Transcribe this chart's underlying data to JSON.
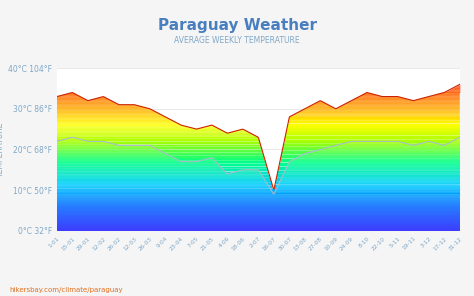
{
  "title": "Paraguay Weather",
  "subtitle": "AVERAGE WEEKLY TEMPERATURE",
  "ylabel": "TEMPERATURE",
  "watermark": "hikersbay.com/climate/paraguay",
  "yticks_labels": [
    "0°C 32°F",
    "10°C 50°F",
    "20°C 68°F",
    "30°C 86°F",
    "40°C 104°F"
  ],
  "yticks_vals": [
    0,
    10,
    20,
    30,
    40
  ],
  "ylim": [
    0,
    40
  ],
  "xtick_labels": [
    "1-01",
    "15-01",
    "29-01",
    "12-02",
    "26-02",
    "12-03",
    "26-03",
    "9-04",
    "23-04",
    "7-05",
    "21-05",
    "4-06",
    "18-06",
    "2-07",
    "16-07",
    "30-07",
    "13-08",
    "27-08",
    "10-09",
    "24-09",
    "8-10",
    "22-10",
    "5-11",
    "19-11",
    "3-12",
    "17-12",
    "31-12"
  ],
  "day_temps": [
    33,
    34,
    32,
    33,
    31,
    31,
    30,
    28,
    26,
    25,
    26,
    24,
    25,
    23,
    10,
    28,
    30,
    32,
    30,
    32,
    34,
    33,
    33,
    32,
    33,
    34,
    36
  ],
  "night_temps": [
    22,
    23,
    22,
    22,
    21,
    21,
    21,
    19,
    17,
    17,
    18,
    14,
    15,
    15,
    9,
    17,
    19,
    20,
    21,
    22,
    22,
    22,
    22,
    21,
    22,
    21,
    23
  ],
  "title_color": "#4a7fbf",
  "subtitle_color": "#7fa8c8",
  "tick_color": "#7fa8c8",
  "ylabel_color": "#7fa8c8",
  "background_color": "#f5f5f5",
  "plot_background": "#ffffff",
  "legend_day_color": "#ff4500",
  "legend_night_color": "#b0c8e0",
  "grid_color": "#e0e0e0",
  "watermark_color": "#e07020",
  "rainbow_colors": [
    [
      0.0,
      "#1a1aff"
    ],
    [
      0.15,
      "#0066ff"
    ],
    [
      0.28,
      "#00ccff"
    ],
    [
      0.42,
      "#00ff88"
    ],
    [
      0.55,
      "#aaff00"
    ],
    [
      0.65,
      "#ffff00"
    ],
    [
      0.75,
      "#ffaa00"
    ],
    [
      0.88,
      "#ff4400"
    ],
    [
      1.0,
      "#ff0000"
    ]
  ]
}
